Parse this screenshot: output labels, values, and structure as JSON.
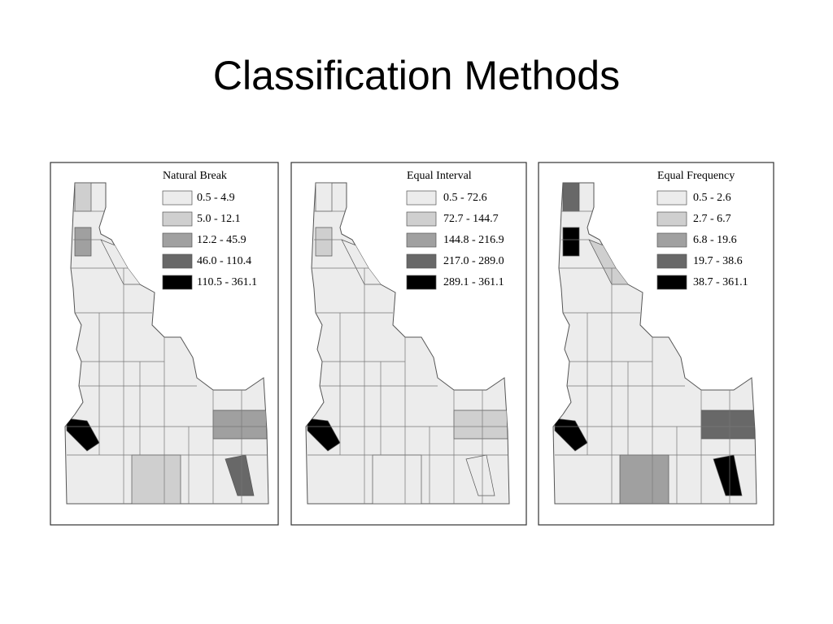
{
  "title": "Classification Methods",
  "maps": [
    {
      "legend_title": "Natural Break",
      "classes": [
        "0.5 - 4.9",
        "5.0 - 12.1",
        "12.2 - 45.9",
        "46.0 - 110.4",
        "110.5 - 361.1"
      ]
    },
    {
      "legend_title": "Equal Interval",
      "classes": [
        "0.5 - 72.6",
        "72.7 - 144.7",
        "144.8 - 216.9",
        "217.0 - 289.0",
        "289.1 - 361.1"
      ]
    },
    {
      "legend_title": "Equal Frequency",
      "classes": [
        "0.5 - 2.6",
        "2.7 - 6.7",
        "6.8 - 19.6",
        "19.7 - 38.6",
        "38.7 - 361.1"
      ]
    }
  ]
}
